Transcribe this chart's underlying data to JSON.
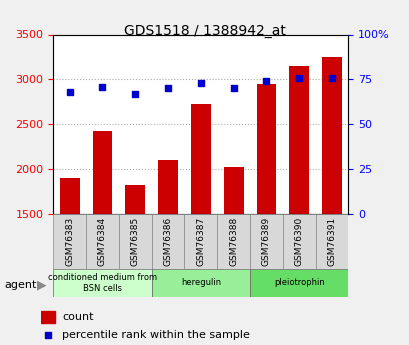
{
  "title": "GDS1518 / 1388942_at",
  "samples": [
    "GSM76383",
    "GSM76384",
    "GSM76385",
    "GSM76386",
    "GSM76387",
    "GSM76388",
    "GSM76389",
    "GSM76390",
    "GSM76391"
  ],
  "counts": [
    1900,
    2420,
    1820,
    2100,
    2720,
    2020,
    2950,
    3150,
    3250
  ],
  "percentiles": [
    68,
    71,
    67,
    70,
    73,
    70,
    74,
    76,
    76
  ],
  "bar_color": "#cc0000",
  "dot_color": "#0000cc",
  "ylim_left": [
    1500,
    3500
  ],
  "ylim_right": [
    0,
    100
  ],
  "yticks_left": [
    1500,
    2000,
    2500,
    3000,
    3500
  ],
  "yticks_right": [
    0,
    25,
    50,
    75,
    100
  ],
  "yticklabels_right": [
    "0",
    "25",
    "50",
    "75",
    "100%"
  ],
  "groups": [
    {
      "label": "conditioned medium from\nBSN cells",
      "start": 0,
      "end": 3,
      "color": "#ccffcc"
    },
    {
      "label": "heregulin",
      "start": 3,
      "end": 6,
      "color": "#99ee99"
    },
    {
      "label": "pleiotrophin",
      "start": 6,
      "end": 9,
      "color": "#66dd66"
    }
  ],
  "xlabel_agent": "agent",
  "legend_count_label": "count",
  "legend_pct_label": "percentile rank within the sample",
  "background_color": "#e8e8e8",
  "plot_bg_color": "#ffffff",
  "grid_color": "#aaaaaa"
}
